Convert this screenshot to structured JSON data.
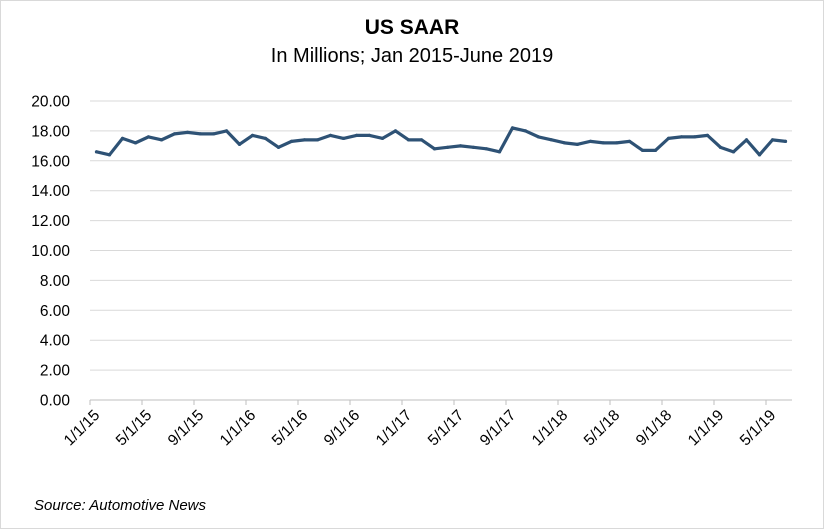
{
  "chart": {
    "title": "US SAAR",
    "subtitle": "In Millions; Jan 2015-June 2019",
    "source": "Source: Automotive News"
  },
  "colors": {
    "series_line": "#2e5275",
    "gridline": "#d9d9d9",
    "axis": "#bfbfbf"
  },
  "chart_data": {
    "type": "line",
    "title": "US SAAR",
    "subtitle": "In Millions; Jan 2015-June 2019",
    "ylim": [
      0,
      20
    ],
    "yticks": [
      0,
      2,
      4,
      6,
      8,
      10,
      12,
      14,
      16,
      18,
      20
    ],
    "ytick_labels": [
      "0.00",
      "2.00",
      "4.00",
      "6.00",
      "8.00",
      "10.00",
      "12.00",
      "14.00",
      "16.00",
      "18.00",
      "20.00"
    ],
    "xtick_labels": [
      "1/1/15",
      "5/1/15",
      "9/1/15",
      "1/1/16",
      "5/1/16",
      "9/1/16",
      "1/1/17",
      "5/1/17",
      "9/1/17",
      "1/1/18",
      "5/1/18",
      "9/1/18",
      "1/1/19",
      "5/1/19"
    ],
    "grid": "horizontal",
    "legend": "none",
    "series": [
      {
        "x": [
          "1/1/15",
          "2/1/15",
          "3/1/15",
          "4/1/15",
          "5/1/15",
          "6/1/15",
          "7/1/15",
          "8/1/15",
          "9/1/15",
          "10/1/15",
          "11/1/15",
          "12/1/15",
          "1/1/16",
          "2/1/16",
          "3/1/16",
          "4/1/16",
          "5/1/16",
          "6/1/16",
          "7/1/16",
          "8/1/16",
          "9/1/16",
          "10/1/16",
          "11/1/16",
          "12/1/16",
          "1/1/17",
          "2/1/17",
          "3/1/17",
          "4/1/17",
          "5/1/17",
          "6/1/17",
          "7/1/17",
          "8/1/17",
          "9/1/17",
          "10/1/17",
          "11/1/17",
          "12/1/17",
          "1/1/18",
          "2/1/18",
          "3/1/18",
          "4/1/18",
          "5/1/18",
          "6/1/18",
          "7/1/18",
          "8/1/18",
          "9/1/18",
          "10/1/18",
          "11/1/18",
          "12/1/18",
          "1/1/19",
          "2/1/19",
          "3/1/19",
          "4/1/19",
          "5/1/19",
          "6/1/19"
        ],
        "values": [
          16.6,
          16.4,
          17.5,
          17.2,
          17.6,
          17.4,
          17.8,
          17.9,
          17.8,
          17.8,
          18.0,
          17.1,
          17.7,
          17.5,
          16.9,
          17.3,
          17.4,
          17.4,
          17.7,
          17.5,
          17.7,
          17.7,
          17.5,
          18.0,
          17.4,
          17.4,
          16.8,
          16.9,
          17.0,
          16.9,
          16.8,
          16.6,
          18.2,
          18.0,
          17.6,
          17.4,
          17.2,
          17.1,
          17.3,
          17.2,
          17.2,
          17.3,
          16.7,
          16.7,
          17.5,
          17.6,
          17.6,
          17.7,
          16.9,
          16.6,
          17.4,
          16.4,
          17.4,
          17.3
        ]
      }
    ]
  }
}
